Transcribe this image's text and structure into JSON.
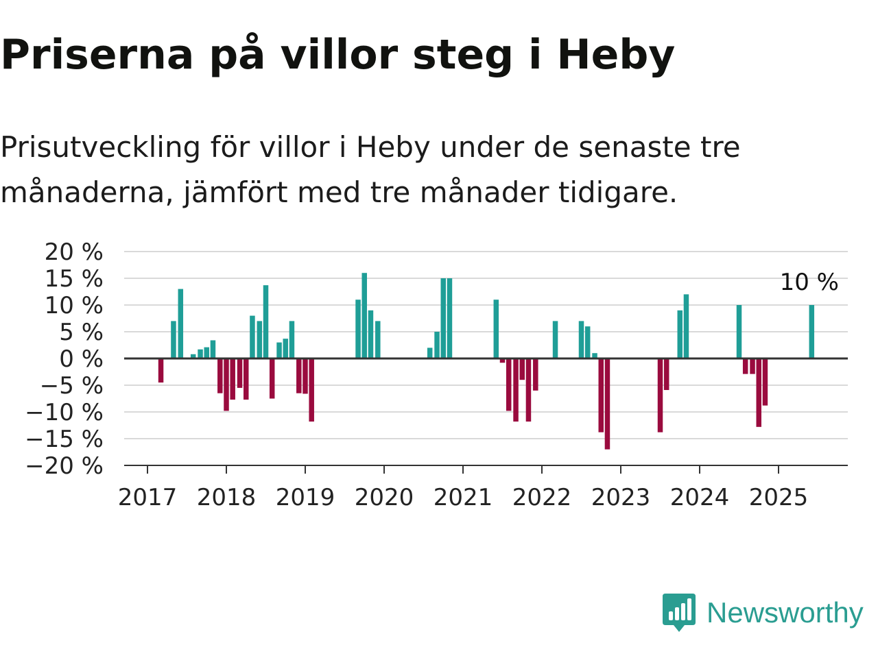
{
  "header": {
    "title": "Priserna på villor steg i Heby",
    "subtitle": "Prisutveckling för villor i Heby under de senaste tre månaderna, jämfört med tre månader tidigare."
  },
  "brand": {
    "name": "Newsworthy",
    "logo_icon": "bar-chart-speech-bubble-icon"
  },
  "colors": {
    "positive": "#1f9e97",
    "negative": "#9a0b3e",
    "grid": "#d9d9d9",
    "axis": "#333333",
    "brand": "#2a9d91"
  },
  "chart_data": {
    "type": "bar",
    "xlabel": "",
    "ylabel": "",
    "ylim": [
      -20,
      20
    ],
    "y_ticks": [
      20,
      15,
      10,
      5,
      0,
      -5,
      -10,
      -15,
      -20
    ],
    "y_tick_labels": [
      "20 %",
      "15 %",
      "10 %",
      "5 %",
      "0 %",
      "−5 %",
      "−10 %",
      "−15 %",
      "−20 %"
    ],
    "x_ticks": [
      2017,
      2018,
      2019,
      2020,
      2021,
      2022,
      2023,
      2024,
      2025
    ],
    "x_tick_labels": [
      "2017",
      "2018",
      "2019",
      "2020",
      "2021",
      "2022",
      "2023",
      "2024",
      "2025"
    ],
    "grid": true,
    "last_value_label": "10 %",
    "series": [
      {
        "x": [
          2017.17,
          2017.33,
          2017.42,
          2017.58,
          2017.67,
          2017.75,
          2017.83,
          2017.92,
          2018.0,
          2018.08,
          2018.17,
          2018.25,
          2018.33,
          2018.42,
          2018.5,
          2018.58,
          2018.67,
          2018.75,
          2018.83,
          2018.92,
          2019.0,
          2019.08,
          2019.67,
          2019.75,
          2019.83,
          2019.92,
          2020.58,
          2020.67,
          2020.75,
          2020.83,
          2021.42,
          2021.5,
          2021.58,
          2021.67,
          2021.75,
          2021.83,
          2021.92,
          2022.17,
          2022.5,
          2022.58,
          2022.67,
          2022.75,
          2022.83,
          2023.5,
          2023.58,
          2023.75,
          2023.83,
          2024.5,
          2024.58,
          2024.67,
          2024.75,
          2024.83,
          2025.42
        ],
        "values": [
          -4.5,
          7,
          13,
          0.8,
          1.7,
          2.1,
          3.4,
          -6.5,
          -9.8,
          -7.7,
          -5.5,
          -7.7,
          8,
          7,
          13.7,
          -7.5,
          3,
          3.7,
          7,
          -6.5,
          -6.6,
          -11.8,
          11,
          16,
          9,
          7,
          2,
          5,
          15,
          15,
          11,
          -0.8,
          -9.8,
          -11.8,
          -4,
          -11.8,
          -6,
          7,
          7,
          6,
          1,
          -13.8,
          -17,
          -13.8,
          -5.9,
          9,
          12,
          10,
          -2.9,
          -2.9,
          -12.8,
          -8.8,
          10
        ]
      }
    ]
  }
}
